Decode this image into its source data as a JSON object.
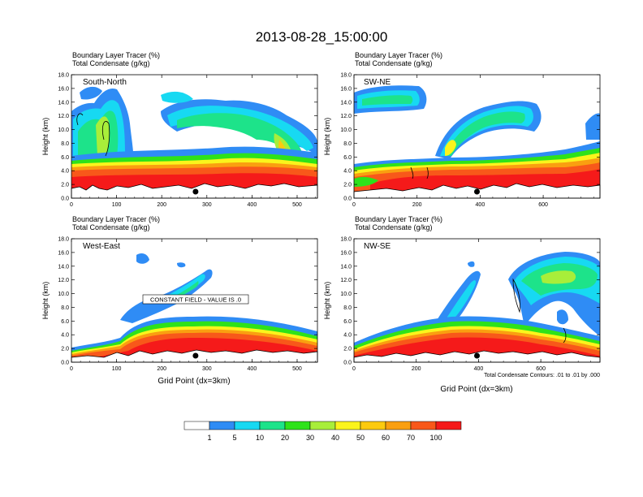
{
  "figure_title": "2013-08-28_15:00:00",
  "palette": [
    "#ffffff",
    "#2f8cf5",
    "#17d9f2",
    "#1de38a",
    "#2ee21a",
    "#a8ee3a",
    "#fbf41c",
    "#fcca0f",
    "#fa9f10",
    "#f8581a",
    "#f51a1a"
  ],
  "colorbar_labels": [
    "1",
    "5",
    "10",
    "20",
    "30",
    "40",
    "50",
    "60",
    "70",
    "100"
  ],
  "footnote": "Total Condensate Contours: .01 to .01 by .000",
  "xlabel": "Grid Point (dx=3km)",
  "ylabel": "Height (km)",
  "field_line1": "Boundary Layer Tracer   (%)",
  "field_line2": "Total Condensate   (g/kg)",
  "chart_data": [
    {
      "type": "heatmap",
      "cross_section": "South-North",
      "xlim": [
        0,
        545
      ],
      "ylim": [
        0,
        18
      ],
      "xticks": [
        "0",
        "100",
        "200",
        "300",
        "400",
        "500"
      ],
      "xtick_values": [
        0,
        100,
        200,
        300,
        400,
        500
      ],
      "yticks": [
        "0.0",
        "2.0",
        "4.0",
        "6.0",
        "8.0",
        "10.0",
        "12.0",
        "14.0",
        "16.0",
        "18.0"
      ],
      "marker_x": 275,
      "boundary_layer_top_km": [
        4.6,
        4.4,
        5.0,
        5.6,
        5.2,
        5.0,
        5.2,
        5.6,
        5.4,
        5.4,
        5.2,
        5.2,
        5.4,
        5.6,
        5.8,
        5.8,
        5.4,
        5.2,
        5.4,
        5.6,
        5.8,
        6.0
      ]
    },
    {
      "type": "heatmap",
      "cross_section": "SW-NE",
      "xlim": [
        0,
        780
      ],
      "ylim": [
        0,
        18
      ],
      "xticks": [
        "0",
        "200",
        "400",
        "600"
      ],
      "xtick_values": [
        0,
        200,
        400,
        600
      ],
      "yticks": [
        "0.0",
        "2.0",
        "4.0",
        "6.0",
        "8.0",
        "10.0",
        "12.0",
        "14.0",
        "16.0",
        "18.0"
      ],
      "marker_x": 390,
      "boundary_layer_top_km": [
        3.8,
        3.2,
        3.6,
        4.2,
        4.6,
        5.2,
        4.4,
        4.2,
        4.6,
        4.4,
        4.4,
        4.6,
        4.6,
        4.8,
        5.0,
        5.0,
        5.2,
        5.4,
        5.6,
        5.8,
        6.2,
        6.8
      ]
    },
    {
      "type": "heatmap",
      "cross_section": "West-East",
      "xlim": [
        0,
        545
      ],
      "ylim": [
        0,
        18
      ],
      "xticks": [
        "0",
        "100",
        "200",
        "300",
        "400",
        "500"
      ],
      "xtick_values": [
        0,
        100,
        200,
        300,
        400,
        500
      ],
      "yticks": [
        "0.0",
        "2.0",
        "4.0",
        "6.0",
        "8.0",
        "10.0",
        "12.0",
        "14.0",
        "16.0",
        "18.0"
      ],
      "marker_x": 275,
      "annotation": "CONSTANT FIELD - VALUE IS .0",
      "boundary_layer_top_km": [
        1.6,
        2.0,
        2.2,
        3.6,
        4.6,
        5.2,
        5.6,
        5.8,
        6.0,
        6.0,
        6.0,
        6.0,
        6.0,
        5.8,
        5.8,
        5.6,
        5.4,
        5.2,
        5.0,
        4.8,
        4.4,
        4.2
      ]
    },
    {
      "type": "heatmap",
      "cross_section": "NW-SE",
      "xlim": [
        0,
        790
      ],
      "ylim": [
        0,
        18
      ],
      "xticks": [
        "0",
        "200",
        "400",
        "600"
      ],
      "xtick_values": [
        0,
        200,
        400,
        600
      ],
      "yticks": [
        "0.0",
        "2.0",
        "4.0",
        "6.0",
        "8.0",
        "10.0",
        "12.0",
        "14.0",
        "16.0",
        "18.0"
      ],
      "marker_x": 395,
      "boundary_layer_top_km": [
        3.2,
        4.0,
        4.4,
        4.8,
        5.2,
        5.6,
        5.8,
        6.0,
        5.8,
        5.8,
        5.6,
        5.4,
        5.2,
        5.2,
        5.2,
        5.6,
        5.4,
        5.0,
        4.4,
        3.6,
        2.8,
        2.0
      ]
    }
  ]
}
